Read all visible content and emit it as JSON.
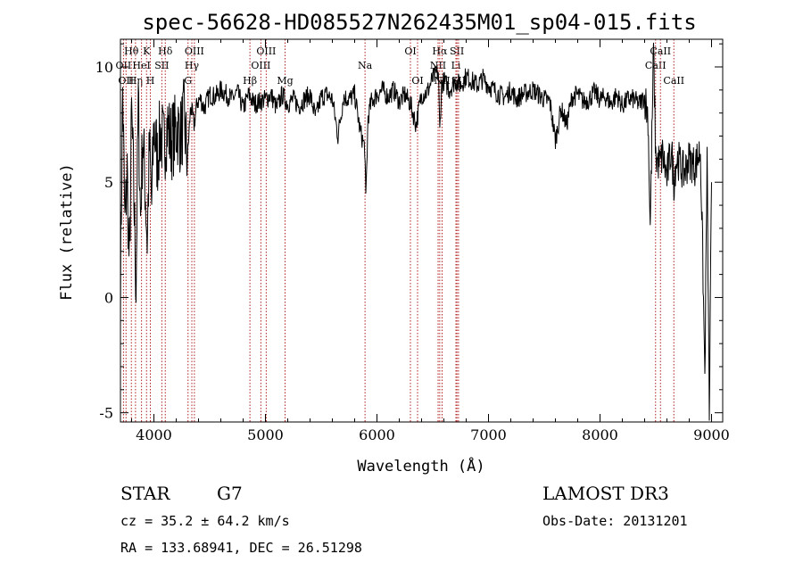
{
  "chart_data": {
    "type": "line",
    "title": "spec-56628-HD085527N262435M01_sp04-015.fits",
    "xlabel": "Wavelength (Å)",
    "ylabel": "Flux (relative)",
    "xlim": [
      3700,
      9100
    ],
    "ylim": [
      -5.4,
      11.2
    ],
    "xticks": [
      4000,
      5000,
      6000,
      7000,
      8000,
      9000
    ],
    "yticks": [
      -5,
      0,
      5,
      10
    ],
    "line_color": "#000000",
    "marker_color": "#b22222",
    "series": [
      {
        "x": [
          3700,
          3720,
          3740,
          3760,
          3780,
          3800,
          3820,
          3840,
          3860,
          3880,
          3900,
          3920,
          3940,
          3960,
          3980,
          4000,
          4030,
          4060,
          4090,
          4120,
          4150,
          4180,
          4210,
          4240,
          4270,
          4300,
          4330,
          4360,
          4390,
          4420,
          4450,
          4500,
          4550,
          4600,
          4650,
          4700,
          4750,
          4800,
          4850,
          4900,
          4950,
          5000,
          5050,
          5100,
          5150,
          5200,
          5250,
          5300,
          5350,
          5400,
          5450,
          5500,
          5550,
          5600,
          5650,
          5700,
          5750,
          5800,
          5850,
          5890,
          5900,
          5920,
          5950,
          6000,
          6050,
          6100,
          6150,
          6200,
          6250,
          6300,
          6350,
          6400,
          6450,
          6500,
          6550,
          6563,
          6580,
          6600,
          6650,
          6700,
          6750,
          6800,
          6850,
          6900,
          6950,
          7000,
          7050,
          7100,
          7150,
          7200,
          7250,
          7300,
          7350,
          7400,
          7450,
          7500,
          7550,
          7600,
          7650,
          7700,
          7750,
          7800,
          7850,
          7900,
          7950,
          8000,
          8050,
          8100,
          8150,
          8200,
          8250,
          8300,
          8350,
          8400,
          8430,
          8450,
          8480,
          8500,
          8542,
          8560,
          8600,
          8640,
          8662,
          8680,
          8700,
          8750,
          8800,
          8850,
          8900,
          8920,
          8940,
          8960,
          8980,
          9000
        ],
        "y": [
          0.5,
          9.0,
          3.0,
          5.5,
          1.0,
          8.0,
          4.5,
          0.5,
          8.5,
          3.5,
          7.0,
          5.0,
          2.5,
          6.5,
          4.0,
          7.5,
          6.0,
          7.2,
          6.5,
          7.5,
          6.8,
          7.0,
          7.4,
          7.0,
          7.8,
          6.0,
          8.3,
          7.5,
          8.5,
          8.6,
          8.2,
          8.8,
          8.7,
          9.0,
          8.8,
          8.6,
          8.9,
          8.2,
          8.8,
          8.4,
          8.5,
          8.6,
          8.8,
          8.2,
          8.8,
          8.4,
          8.6,
          8.3,
          8.6,
          8.8,
          7.8,
          8.7,
          8.8,
          8.6,
          7.0,
          8.7,
          8.6,
          8.8,
          7.2,
          6.5,
          4.2,
          7.8,
          8.5,
          8.8,
          9.0,
          8.7,
          9.0,
          8.5,
          8.8,
          8.4,
          7.5,
          8.8,
          8.9,
          9.5,
          9.8,
          7.2,
          9.2,
          9.4,
          9.0,
          9.4,
          9.2,
          9.6,
          9.4,
          9.2,
          9.5,
          9.2,
          9.0,
          8.8,
          8.7,
          9.0,
          8.6,
          8.8,
          8.9,
          9.0,
          8.8,
          8.6,
          8.5,
          6.8,
          8.2,
          7.5,
          8.7,
          8.8,
          8.5,
          8.6,
          8.9,
          8.6,
          8.7,
          8.4,
          8.8,
          8.3,
          8.6,
          8.6,
          8.4,
          8.7,
          7.9,
          3.0,
          10.8,
          6.0,
          5.8,
          6.2,
          5.2,
          6.5,
          5.0,
          5.9,
          6.0,
          5.4,
          6.0,
          5.7,
          6.4,
          2.0,
          -3.5,
          6.0,
          -5.2,
          5.0
        ]
      }
    ],
    "markers": [
      {
        "wl": 3727,
        "labels": [
          "OII"
        ],
        "rows": [
          1
        ]
      },
      {
        "wl": 3750,
        "labels": [
          "OII"
        ],
        "rows": [
          2
        ]
      },
      {
        "wl": 3798,
        "labels": [
          "Hθ"
        ],
        "rows": [
          0
        ]
      },
      {
        "wl": 3835,
        "labels": [
          "Hη"
        ],
        "rows": [
          2
        ]
      },
      {
        "wl": 3889,
        "labels": [
          "HeI"
        ],
        "rows": [
          1
        ]
      },
      {
        "wl": 3934,
        "labels": [
          "K"
        ],
        "rows": [
          0
        ]
      },
      {
        "wl": 3968,
        "labels": [
          "H"
        ],
        "rows": [
          2
        ]
      },
      {
        "wl": 4071,
        "labels": [
          "SII"
        ],
        "rows": [
          1
        ]
      },
      {
        "wl": 4102,
        "labels": [
          "Hδ"
        ],
        "rows": [
          0
        ]
      },
      {
        "wl": 4306,
        "labels": [
          "G"
        ],
        "rows": [
          2
        ]
      },
      {
        "wl": 4340,
        "labels": [
          "Hγ"
        ],
        "rows": [
          1
        ]
      },
      {
        "wl": 4363,
        "labels": [
          "OIII"
        ],
        "rows": [
          0
        ]
      },
      {
        "wl": 4861,
        "labels": [
          "Hβ"
        ],
        "rows": [
          2
        ]
      },
      {
        "wl": 4959,
        "labels": [
          "OIII"
        ],
        "rows": [
          1
        ]
      },
      {
        "wl": 5007,
        "labels": [
          "OIII"
        ],
        "rows": [
          0
        ]
      },
      {
        "wl": 5176,
        "labels": [
          "Mg"
        ],
        "rows": [
          2
        ]
      },
      {
        "wl": 5893,
        "labels": [
          "Na"
        ],
        "rows": [
          1
        ]
      },
      {
        "wl": 6300,
        "labels": [
          "OI"
        ],
        "rows": [
          0
        ]
      },
      {
        "wl": 6364,
        "labels": [
          "OI"
        ],
        "rows": [
          2
        ]
      },
      {
        "wl": 6548,
        "labels": [
          "NII"
        ],
        "rows": [
          1
        ]
      },
      {
        "wl": 6563,
        "labels": [
          "Hα"
        ],
        "rows": [
          0
        ]
      },
      {
        "wl": 6584,
        "labels": [
          "NII"
        ],
        "rows": [
          2
        ]
      },
      {
        "wl": 6708,
        "labels": [
          "Li"
        ],
        "rows": [
          1
        ]
      },
      {
        "wl": 6717,
        "labels": [
          "SII"
        ],
        "rows": [
          0
        ]
      },
      {
        "wl": 6731,
        "labels": [
          "SII"
        ],
        "rows": [
          2
        ]
      },
      {
        "wl": 8498,
        "labels": [
          "CaII"
        ],
        "rows": [
          1
        ]
      },
      {
        "wl": 8542,
        "labels": [
          "CaII"
        ],
        "rows": [
          0
        ]
      },
      {
        "wl": 8662,
        "labels": [
          "CaII"
        ],
        "rows": [
          2
        ]
      }
    ]
  },
  "info": {
    "class_label": "STAR",
    "subclass": "G7",
    "velocity": "cz = 35.2 ± 64.2 km/s",
    "coordinates": "RA = 133.68941, DEC =  26.51298",
    "survey": "LAMOST DR3",
    "obs_date": "Obs-Date: 20131201"
  }
}
